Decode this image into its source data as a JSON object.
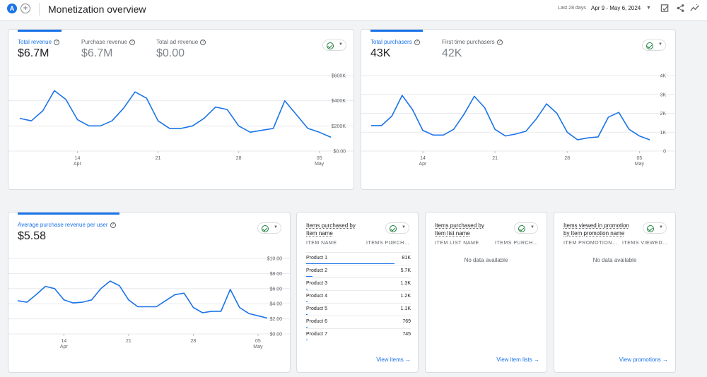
{
  "header": {
    "avatar_letter": "A",
    "add_icon": "plus-icon",
    "title": "Monetization overview",
    "date_prefix": "Last 28 days",
    "date_range": "Apr 9 - May 6, 2024",
    "icons": [
      "report-edit-icon",
      "share-icon",
      "insights-icon"
    ]
  },
  "revenue_card": {
    "metrics": [
      {
        "label": "Total revenue",
        "value": "$6.7M"
      },
      {
        "label": "Purchase revenue",
        "value": "$6.7M"
      },
      {
        "label": "Total ad revenue",
        "value": "$0.00"
      }
    ],
    "status_icon": "check-circle-icon"
  },
  "purchasers_card": {
    "metrics": [
      {
        "label": "Total purchasers",
        "value": "43K"
      },
      {
        "label": "First time purchasers",
        "value": "42K"
      }
    ],
    "status_icon": "check-circle-icon"
  },
  "arpu_card": {
    "metrics": [
      {
        "label": "Average purchase revenue per user",
        "value": "$5.58"
      }
    ],
    "status_icon": "check-circle-icon"
  },
  "items_card": {
    "title_line1": "Items purchased by",
    "title_line2": "Item name",
    "col1": "ITEM NAME",
    "col2": "ITEMS PURCHA...",
    "rows": [
      {
        "name": "Product 1",
        "value": "81K",
        "share": 1.0
      },
      {
        "name": "Product 2",
        "value": "5.7K",
        "share": 0.07
      },
      {
        "name": "Product 3",
        "value": "1.3K",
        "share": 0.016
      },
      {
        "name": "Product 4",
        "value": "1.2K",
        "share": 0.015
      },
      {
        "name": "Product 5",
        "value": "1.1K",
        "share": 0.014
      },
      {
        "name": "Product 6",
        "value": "769",
        "share": 0.01
      },
      {
        "name": "Product 7",
        "value": "745",
        "share": 0.009
      }
    ],
    "link": "View items →"
  },
  "list_card": {
    "title_line1": "Items purchased by",
    "title_line2": "Item list name",
    "col1": "ITEM LIST NAME",
    "col2": "ITEMS PURCHA...",
    "empty": "No data available",
    "link": "View item lists →"
  },
  "promo_card": {
    "title_line1": "Items viewed in promotion",
    "title_line2": "by Item promotion name",
    "col1": "ITEM PROMOTION ...",
    "col2": "ITEMS VIEWED ...",
    "empty": "No data available",
    "link": "View promotions →"
  },
  "chart_data": [
    {
      "type": "line",
      "series": [
        {
          "values": [
            260,
            240,
            320,
            480,
            410,
            250,
            200,
            200,
            240,
            340,
            470,
            420,
            240,
            180,
            180,
            200,
            260,
            350,
            330,
            200,
            150,
            165,
            180,
            400,
            290,
            180,
            150,
            110
          ]
        }
      ],
      "x_tick_labels": [
        {
          "day": 5,
          "label": "14",
          "sub": "Apr"
        },
        {
          "day": 12,
          "label": "21"
        },
        {
          "day": 19,
          "label": "28"
        },
        {
          "day": 26,
          "label": "05",
          "sub": "May"
        }
      ],
      "yticks": [
        {
          "v": 0,
          "label": "$0.00"
        },
        {
          "v": 200,
          "label": "$200K"
        },
        {
          "v": 400,
          "label": "$400K"
        },
        {
          "v": 600,
          "label": "$600K"
        }
      ],
      "ylim": [
        0,
        600
      ],
      "grid": true,
      "color": "#1a73e8"
    },
    {
      "type": "line",
      "series": [
        {
          "values": [
            1.35,
            1.35,
            1.85,
            2.95,
            2.2,
            1.1,
            0.85,
            0.85,
            1.15,
            1.95,
            2.9,
            2.3,
            1.15,
            0.8,
            0.9,
            1.05,
            1.7,
            2.5,
            2.0,
            1.0,
            0.6,
            0.7,
            0.75,
            1.8,
            2.05,
            1.15,
            0.8,
            0.6
          ]
        }
      ],
      "x_tick_labels": [
        {
          "day": 5,
          "label": "14",
          "sub": "Apr"
        },
        {
          "day": 12,
          "label": "21"
        },
        {
          "day": 19,
          "label": "28"
        },
        {
          "day": 26,
          "label": "05",
          "sub": "May"
        }
      ],
      "yticks": [
        {
          "v": 0,
          "label": "0"
        },
        {
          "v": 1,
          "label": "1K"
        },
        {
          "v": 2,
          "label": "2K"
        },
        {
          "v": 3,
          "label": "3K"
        },
        {
          "v": 4,
          "label": "4K"
        }
      ],
      "ylim": [
        0,
        4
      ],
      "grid": true,
      "color": "#1a73e8"
    },
    {
      "type": "line",
      "series": [
        {
          "values": [
            4.4,
            4.2,
            5.2,
            6.3,
            6.0,
            4.5,
            4.1,
            4.2,
            4.5,
            6.0,
            7.0,
            6.4,
            4.5,
            3.6,
            3.6,
            3.6,
            4.4,
            5.2,
            5.4,
            3.5,
            2.8,
            3.0,
            3.0,
            5.9,
            3.5,
            2.7,
            2.4,
            2.1
          ]
        }
      ],
      "x_tick_labels": [
        {
          "day": 5,
          "label": "14",
          "sub": "Apr"
        },
        {
          "day": 12,
          "label": "21"
        },
        {
          "day": 19,
          "label": "28"
        },
        {
          "day": 26,
          "label": "05",
          "sub": "May"
        }
      ],
      "yticks": [
        {
          "v": 0,
          "label": "$0.00"
        },
        {
          "v": 2,
          "label": "$2.00"
        },
        {
          "v": 4,
          "label": "$4.00"
        },
        {
          "v": 6,
          "label": "$6.00"
        },
        {
          "v": 8,
          "label": "$8.00"
        },
        {
          "v": 10,
          "label": "$10.00"
        }
      ],
      "ylim": [
        0,
        10
      ],
      "grid": true,
      "color": "#1a73e8"
    }
  ]
}
